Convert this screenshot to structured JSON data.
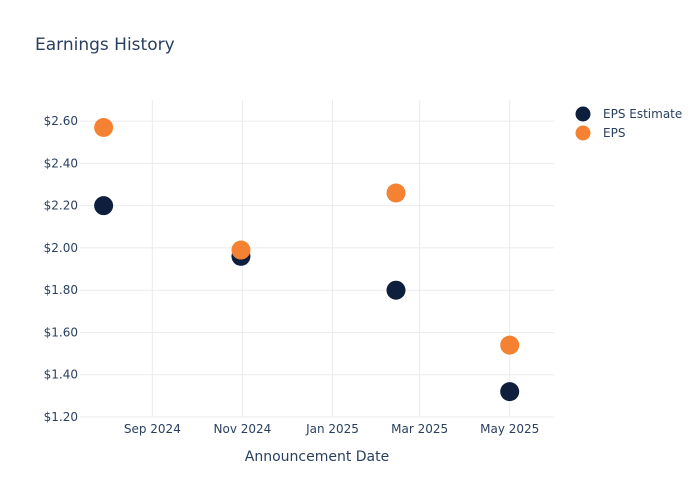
{
  "chart_data": {
    "type": "scatter",
    "title": "Earnings History",
    "xlabel": "Announcement Date",
    "ylabel": "",
    "ylim": [
      1.2,
      2.7
    ],
    "xlim": [
      "2024-07-14",
      "2025-05-31"
    ],
    "grid": true,
    "legend_position": "top-right",
    "x_ticks": [
      {
        "date": "2024-09-01",
        "label": "Sep 2024"
      },
      {
        "date": "2024-11-01",
        "label": "Nov 2024"
      },
      {
        "date": "2025-01-01",
        "label": "Jan 2025"
      },
      {
        "date": "2025-03-01",
        "label": "Mar 2025"
      },
      {
        "date": "2025-05-01",
        "label": "May 2025"
      }
    ],
    "y_ticks": [
      {
        "value": 1.2,
        "label": "$1.20"
      },
      {
        "value": 1.4,
        "label": "$1.40"
      },
      {
        "value": 1.6,
        "label": "$1.60"
      },
      {
        "value": 1.8,
        "label": "$1.80"
      },
      {
        "value": 2.0,
        "label": "$2.00"
      },
      {
        "value": 2.2,
        "label": "$2.20"
      },
      {
        "value": 2.4,
        "label": "$2.40"
      },
      {
        "value": 2.6,
        "label": "$2.60"
      }
    ],
    "series": [
      {
        "name": "EPS Estimate",
        "color": "#0d1f3c",
        "points": [
          {
            "x": "2024-07-30",
            "y": 2.2
          },
          {
            "x": "2024-10-31",
            "y": 1.96
          },
          {
            "x": "2025-02-13",
            "y": 1.8
          },
          {
            "x": "2025-05-01",
            "y": 1.32
          }
        ]
      },
      {
        "name": "EPS",
        "color": "#f58232",
        "points": [
          {
            "x": "2024-07-30",
            "y": 2.57
          },
          {
            "x": "2024-10-31",
            "y": 1.99
          },
          {
            "x": "2025-02-13",
            "y": 2.26
          },
          {
            "x": "2025-05-01",
            "y": 1.54
          }
        ]
      }
    ]
  }
}
